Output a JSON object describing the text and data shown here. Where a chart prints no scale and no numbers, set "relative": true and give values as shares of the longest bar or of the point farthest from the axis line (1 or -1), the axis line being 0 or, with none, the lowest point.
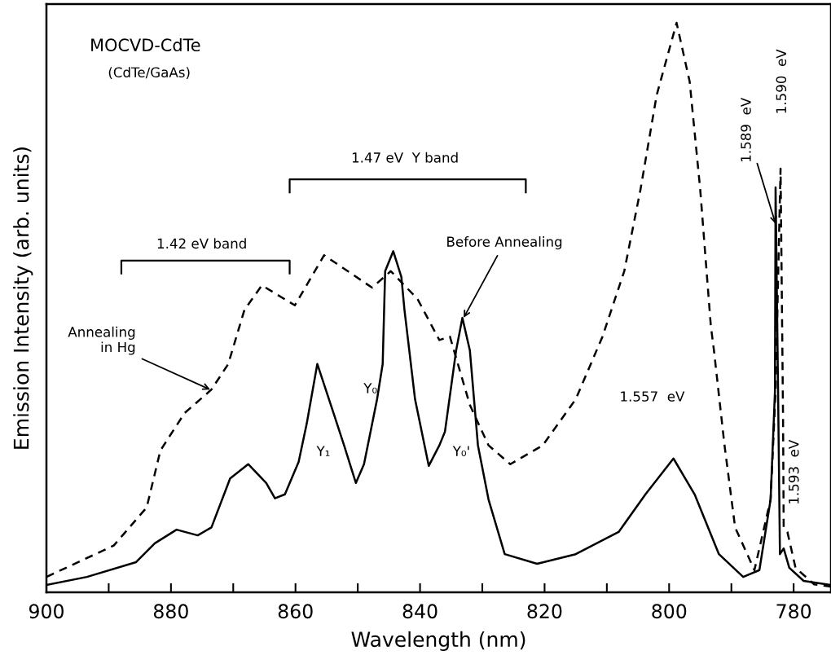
{
  "chart_data": {
    "type": "line",
    "relative": true,
    "xlabel": "Wavelength (nm)",
    "ylabel": "Emission Intensity (arb. units)",
    "xlim": [
      900,
      774
    ],
    "xticks": [
      900,
      {
        "value": 890,
        "label": null
      },
      880,
      {
        "value": 870,
        "label": null
      },
      860,
      {
        "value": 850,
        "label": null
      },
      840,
      {
        "value": 830,
        "label": null
      },
      820,
      {
        "value": 810,
        "label": null
      },
      800,
      {
        "value": 790,
        "label": null
      },
      780
    ],
    "grid": false,
    "legend": false,
    "marker": "none",
    "series": [
      {
        "color": "#000000",
        "line_style": "solid",
        "x": [
          900,
          893.5,
          885.6,
          882.6,
          879.1,
          875.7,
          873.5,
          870.5,
          867.6,
          864.7,
          863.3,
          861.7,
          859.5,
          858.2,
          856.5,
          853.9,
          852.2,
          850.3,
          849.0,
          846.9,
          846.0,
          845.6,
          844.3,
          843.0,
          842.5,
          840.8,
          838.6,
          836.9,
          836.0,
          834.2,
          833.2,
          832.0,
          830.7,
          829.0,
          826.4,
          821.2,
          815.0,
          808.1,
          803.8,
          799.3,
          795.9,
          792.0,
          788.1,
          785.5,
          783.7,
          783.0,
          782.9,
          782.5,
          782.2,
          781.6,
          780.7,
          778.4,
          774.1
        ],
        "values": [
          0.013,
          0.027,
          0.053,
          0.086,
          0.11,
          0.1,
          0.114,
          0.2,
          0.225,
          0.192,
          0.165,
          0.172,
          0.229,
          0.296,
          0.401,
          0.315,
          0.258,
          0.192,
          0.225,
          0.339,
          0.401,
          0.564,
          0.599,
          0.554,
          0.496,
          0.339,
          0.222,
          0.258,
          0.282,
          0.425,
          0.482,
          0.425,
          0.258,
          0.163,
          0.067,
          0.05,
          0.067,
          0.106,
          0.172,
          0.235,
          0.172,
          0.067,
          0.027,
          0.039,
          0.163,
          0.353,
          0.711,
          0.353,
          0.067,
          0.077,
          0.043,
          0.02,
          0.013
        ]
      },
      {
        "color": "#000000",
        "line_style": "dashed",
        "x": [
          900,
          889.2,
          883.9,
          881.7,
          877.8,
          873.5,
          870.8,
          868.2,
          865.4,
          860.1,
          855.4,
          847.7,
          844.7,
          840.4,
          836.9,
          835.2,
          832.0,
          829.0,
          825.5,
          820.3,
          815.0,
          810.7,
          807.2,
          804.6,
          802.0,
          798.8,
          796.7,
          795.0,
          793.3,
          792.8,
          791.1,
          789.4,
          786.3,
          783.7,
          782.9,
          782.1,
          781.7,
          781.6,
          781.0,
          779.7,
          776.7,
          774.1
        ],
        "values": [
          0.027,
          0.082,
          0.149,
          0.249,
          0.315,
          0.356,
          0.401,
          0.496,
          0.539,
          0.504,
          0.592,
          0.535,
          0.564,
          0.515,
          0.443,
          0.449,
          0.329,
          0.258,
          0.225,
          0.258,
          0.339,
          0.449,
          0.564,
          0.707,
          0.873,
          1.0,
          0.897,
          0.707,
          0.468,
          0.425,
          0.258,
          0.114,
          0.039,
          0.163,
          0.353,
          0.744,
          0.306,
          0.114,
          0.106,
          0.043,
          0.014,
          0.01
        ]
      }
    ],
    "annotations": [
      "MOCVD-CdTe",
      "(CdTe/GaAs)",
      {
        "text": "Annealing\nin Hg",
        "x": 873.7,
        "y": 0.356
      },
      {
        "text": "Before Annealing",
        "x": 833.0,
        "y": 0.482
      },
      "Y₁",
      "Y₀",
      "Y₀'",
      "1.557  eV",
      {
        "text": "1.589  eV",
        "x": 782.9,
        "y": 0.647
      },
      "1.590  eV",
      "1.593  eV",
      "1.42 eV band",
      "1.47 eV  Y band"
    ]
  }
}
